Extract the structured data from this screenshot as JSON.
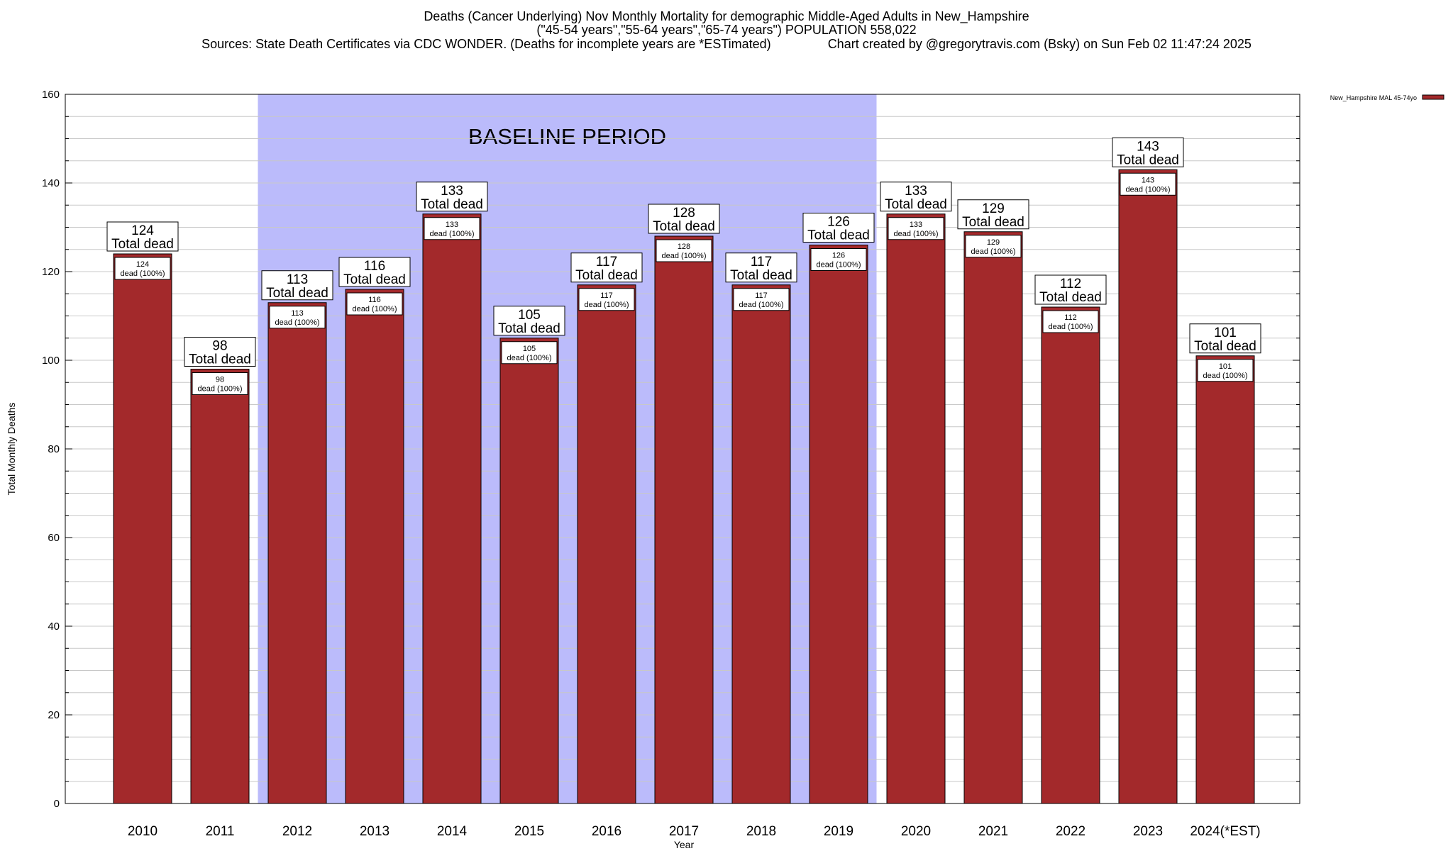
{
  "header": {
    "title": "Deaths (Cancer Underlying) Nov Monthly Mortality for demographic Middle-Aged Adults in New_Hampshire",
    "subtitle": "(\"45-54 years\",\"55-64 years\",\"65-74 years\") POPULATION 558,022",
    "sources": "Sources: State Death Certificates via CDC WONDER. (Deaths for incomplete years are *ESTimated)",
    "credit": "Chart created by @gregorytravis.com (Bsky) on Sun Feb 02 11:47:24 2025"
  },
  "chart_data": {
    "type": "bar",
    "title": "Deaths (Cancer Underlying) Nov Monthly Mortality for demographic Middle-Aged Adults in New_Hampshire",
    "xlabel": "Year",
    "ylabel": "Total Monthly Deaths",
    "categories": [
      "2010",
      "2011",
      "2012",
      "2013",
      "2014",
      "2015",
      "2016",
      "2017",
      "2018",
      "2019",
      "2020",
      "2021",
      "2022",
      "2023",
      "2024(*EST)"
    ],
    "series": [
      {
        "name": "New_Hampshire MAL 45-74yo",
        "color": "#a3292b",
        "values": [
          124,
          98,
          113,
          116,
          133,
          105,
          117,
          128,
          117,
          126,
          133,
          129,
          112,
          143,
          101
        ]
      }
    ],
    "ylim": [
      0,
      160
    ],
    "yticks": [
      0,
      20,
      40,
      60,
      80,
      100,
      120,
      140,
      160
    ],
    "grid": true,
    "legend_position": "top-right",
    "baseline": {
      "label": "BASELINE PERIOD",
      "from": "2012",
      "to": "2019",
      "color": "#bbbbfb"
    },
    "label_top_text": "Total dead",
    "label_inner_text": "dead (100%)"
  }
}
